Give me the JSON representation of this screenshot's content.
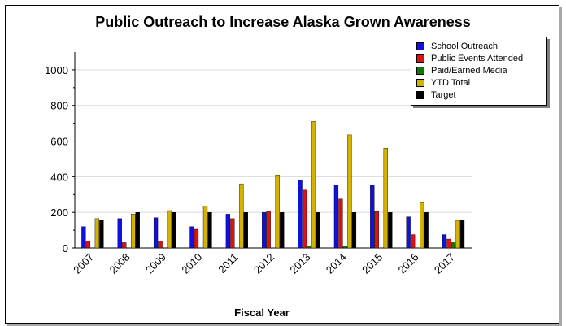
{
  "chart_data": {
    "type": "bar",
    "title": "Public Outreach to Increase Alaska Grown Awareness",
    "xlabel": "Fiscal Year",
    "ylabel": "",
    "ylim": [
      0,
      1100
    ],
    "yticks": [
      0,
      200,
      400,
      600,
      800,
      1000
    ],
    "grid": true,
    "legend_position": "top-right",
    "categories": [
      "2007",
      "2008",
      "2009",
      "2010",
      "2011",
      "2012",
      "2013",
      "2014",
      "2015",
      "2016",
      "2017"
    ],
    "series": [
      {
        "name": "School Outreach",
        "color": "#1010e0",
        "values": [
          120,
          165,
          170,
          120,
          190,
          200,
          380,
          355,
          355,
          175,
          75
        ]
      },
      {
        "name": "Public Events Attended",
        "color": "#e01010",
        "values": [
          40,
          30,
          40,
          105,
          165,
          205,
          325,
          275,
          205,
          75,
          50
        ]
      },
      {
        "name": "Paid/Earned Media",
        "color": "#0a7a0a",
        "values": [
          0,
          0,
          0,
          0,
          0,
          0,
          10,
          10,
          0,
          0,
          30
        ]
      },
      {
        "name": "YTD Total",
        "color": "#d4b200",
        "values": [
          165,
          190,
          210,
          235,
          360,
          410,
          710,
          635,
          560,
          255,
          155
        ]
      },
      {
        "name": "Target",
        "color": "#000000",
        "values": [
          155,
          200,
          200,
          200,
          200,
          200,
          200,
          200,
          200,
          200,
          155
        ]
      }
    ]
  }
}
